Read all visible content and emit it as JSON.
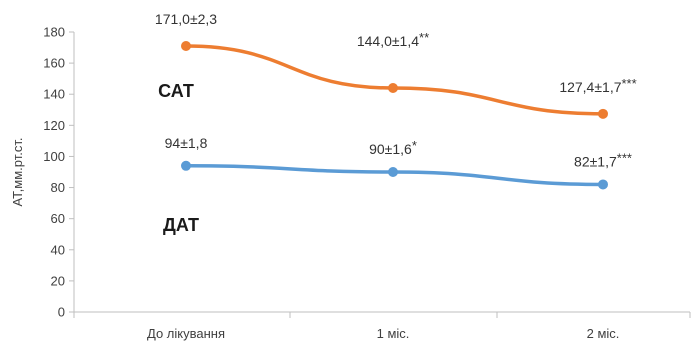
{
  "chart_data": {
    "type": "line",
    "categories": [
      "До лікування",
      "1 міс.",
      "2 міс."
    ],
    "ylabel": "АТ,мм.рт.ст.",
    "ylim": [
      0,
      180
    ],
    "yticks": [
      0,
      20,
      40,
      60,
      80,
      100,
      120,
      140,
      160,
      180
    ],
    "grid": false,
    "series": [
      {
        "name": "САТ",
        "color": "#ED7D31",
        "values": [
          171.0,
          144.0,
          127.4
        ],
        "labels": [
          "171,0±2,3",
          "144,0±1,4",
          "127,4±1,7"
        ],
        "markers": [
          "",
          "**",
          "***"
        ]
      },
      {
        "name": "ДАТ",
        "color": "#5B9BD5",
        "values": [
          94,
          90,
          82
        ],
        "labels": [
          "94±1,8",
          "90±1,6",
          "82±1,7"
        ],
        "markers": [
          "",
          "*",
          "***"
        ]
      }
    ]
  }
}
